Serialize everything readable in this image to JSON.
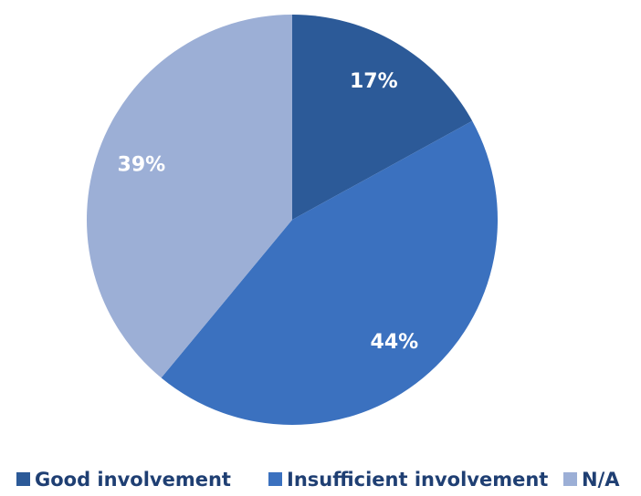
{
  "chart_data": {
    "type": "pie",
    "categories": [
      "Good involvement",
      "Insufficient involvement",
      "N/A"
    ],
    "values": [
      17,
      44,
      39
    ],
    "value_labels": [
      "17%",
      "44%",
      "39%"
    ],
    "colors": [
      "#2c5a98",
      "#3b71bf",
      "#9cafd6"
    ]
  }
}
